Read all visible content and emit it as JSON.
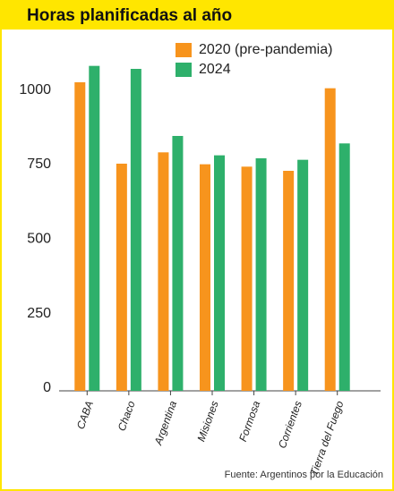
{
  "chart_data": {
    "type": "bar",
    "title": "Horas planificadas al año",
    "categories": [
      "CABA",
      "Chaco",
      "Argentina",
      "Misiones",
      "Formosa",
      "Corrientes",
      "Tierra del Fuego"
    ],
    "series": [
      {
        "name": "2020 (pre-pandemia)",
        "color": "#f7941d",
        "values": [
          1035,
          762,
          800,
          760,
          752,
          738,
          1015
        ]
      },
      {
        "name": "2024",
        "color": "#2eb06b",
        "values": [
          1090,
          1080,
          855,
          790,
          780,
          775,
          830
        ]
      }
    ],
    "ylim": [
      0,
      1200
    ],
    "yticks": [
      0,
      250,
      500,
      750,
      1000
    ],
    "grid": false,
    "source": "Fuente: Argentinos por la Educación"
  }
}
